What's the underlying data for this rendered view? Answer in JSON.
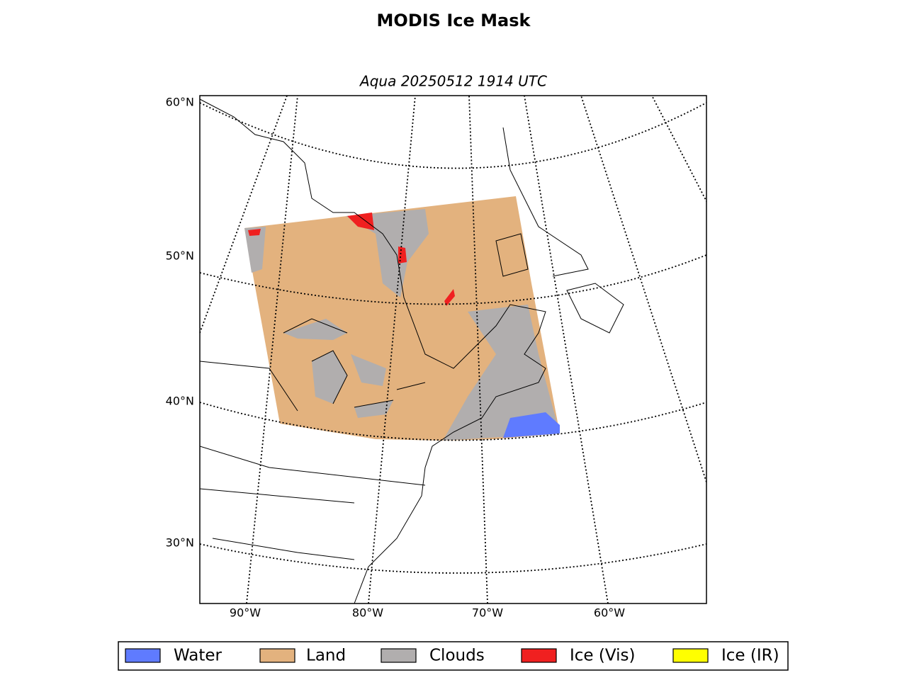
{
  "title": "MODIS Ice Mask",
  "subtitle": "Aqua 20250512 1914 UTC",
  "lat_labels": [
    "60°N",
    "50°N",
    "40°N",
    "30°N"
  ],
  "lon_labels": [
    "90°W",
    "80°W",
    "70°W",
    "60°W"
  ],
  "legend": [
    {
      "label": "Water",
      "color": "#5f7bff"
    },
    {
      "label": "Land",
      "color": "#e3b27e"
    },
    {
      "label": "Clouds",
      "color": "#b1aeae"
    },
    {
      "label": "Ice (Vis)",
      "color": "#f02020"
    },
    {
      "label": "Ice (IR)",
      "color": "#ffff00"
    }
  ]
}
